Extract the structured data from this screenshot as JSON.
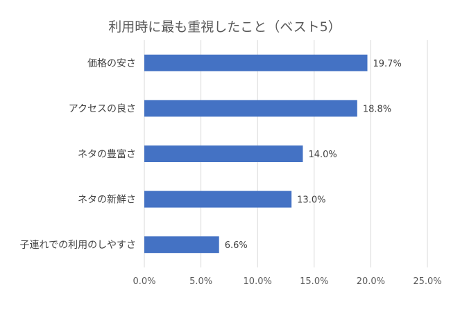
{
  "chart_data": {
    "type": "bar",
    "orientation": "horizontal",
    "title": "利用時に最も重視したこと（ベスト5）",
    "categories": [
      "価格の安さ",
      "アクセスの良さ",
      "ネタの豊富さ",
      "ネタの新鮮さ",
      "子連れでの利用のしやすさ"
    ],
    "values": [
      19.7,
      18.8,
      14.0,
      13.0,
      6.6
    ],
    "data_labels": [
      "19.7%",
      "18.8%",
      "14.0%",
      "13.0%",
      "6.6%"
    ],
    "xlim": [
      0,
      25
    ],
    "x_ticks": [
      0,
      5,
      10,
      15,
      20,
      25
    ],
    "x_tick_labels": [
      "0.0%",
      "5.0%",
      "10.0%",
      "15.0%",
      "20.0%",
      "25.0%"
    ],
    "xlabel": "",
    "ylabel": "",
    "grid": "vertical",
    "legend": "none",
    "bar_color": "#4472c4"
  }
}
